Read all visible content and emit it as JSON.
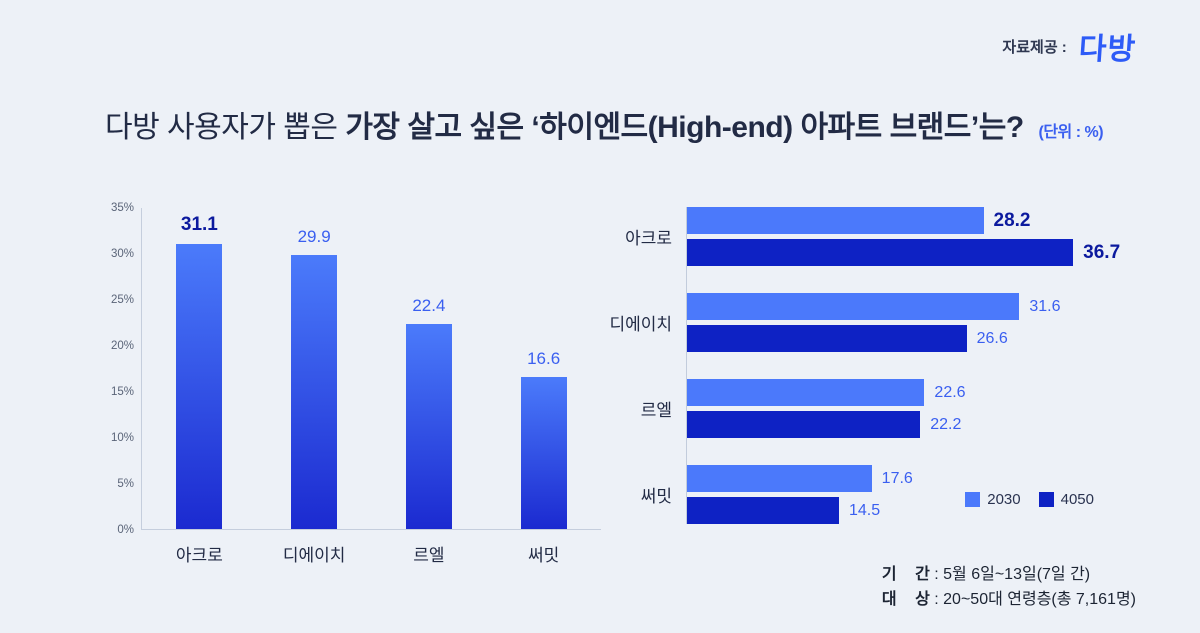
{
  "header": {
    "provider_label": "자료제공 :",
    "logo_text": "다방"
  },
  "title": {
    "prefix": "다방 사용자가 뽑은 ",
    "emphasis": "가장 살고 싶은 ‘하이엔드(High-end) 아파트 브랜드’는?",
    "unit": "(단위 : %)"
  },
  "colors": {
    "background": "#edf1f7",
    "title_text": "#222b45",
    "logo_blue": "#2d5bf7",
    "accent_text": "#3a5ff0",
    "accent_text_dark": "#0c1a9e",
    "bar_light": "#4b79fb",
    "bar_dark": "#0e22c4",
    "bar_gradient_top": "#4b7bfb",
    "bar_gradient_bottom": "#1b2ad0"
  },
  "chart_data": [
    {
      "type": "bar",
      "orientation": "vertical",
      "categories": [
        "아크로",
        "디에이치",
        "르엘",
        "써밋"
      ],
      "values": [
        31.1,
        29.9,
        22.4,
        16.6
      ],
      "highlight_index": 0,
      "unit": "%",
      "ylim": [
        0,
        35
      ],
      "yticks": [
        "0%",
        "5%",
        "10%",
        "15%",
        "20%",
        "25%",
        "30%",
        "35%"
      ],
      "grid": false
    },
    {
      "type": "bar",
      "orientation": "horizontal",
      "categories": [
        "아크로",
        "디에이치",
        "르엘",
        "써밋"
      ],
      "series": [
        {
          "name": "2030",
          "values": [
            28.2,
            31.6,
            22.6,
            17.6
          ]
        },
        {
          "name": "4050",
          "values": [
            36.7,
            26.6,
            22.2,
            14.5
          ]
        }
      ],
      "highlight_index": 0,
      "unit": "%",
      "xlim": [
        0,
        40
      ],
      "grid": false,
      "legend_position": "bottom-right"
    }
  ],
  "footnotes": [
    {
      "label": "기 간",
      "value": "5월 6일~13일(7일 간)"
    },
    {
      "label": "대 상",
      "value": "20~50대 연령층(총 7,161명)"
    }
  ]
}
